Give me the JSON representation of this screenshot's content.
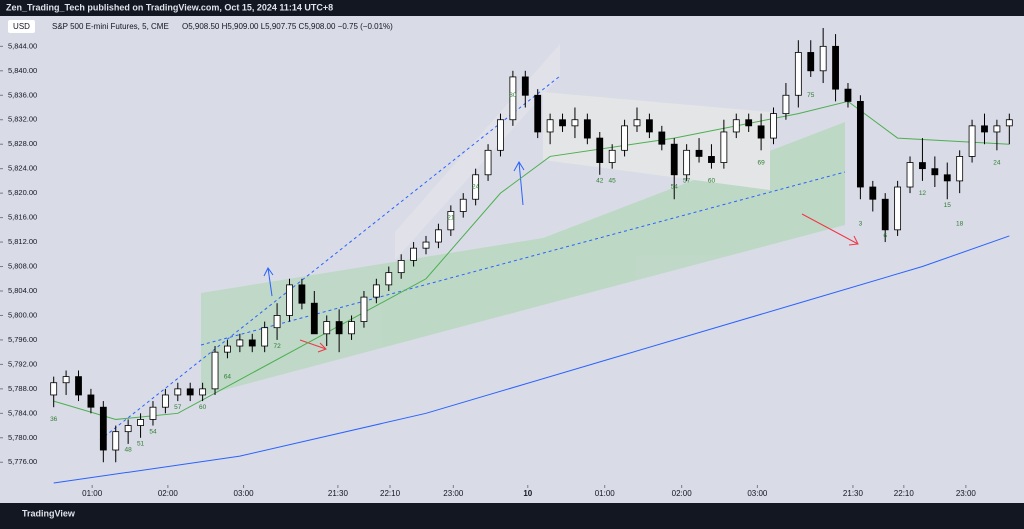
{
  "header": {
    "publisher": "Zen_Trading_Tech published on TradingView.com, Oct 15, 2024 11:14 UTC+8",
    "currency": "USD",
    "footer": "TradingView"
  },
  "chart_data": {
    "type": "candlestick",
    "title": "S&P 500 E-mini Futures, 5, CME",
    "subtitle": "O5,908.50 H5,909.00 L5,907.75 C5,908.00 −0.75 (−0.01%)",
    "up_color": "#ffffff",
    "down_color": "#000000",
    "ohlc": [
      [
        5787,
        5790,
        5785,
        5789
      ],
      [
        5789,
        5791,
        5787,
        5790
      ],
      [
        5790,
        5791,
        5786,
        5787
      ],
      [
        5787,
        5788,
        5784,
        5785
      ],
      [
        5785,
        5786,
        5776,
        5778
      ],
      [
        5778,
        5782,
        5776,
        5781
      ],
      [
        5781,
        5783,
        5779,
        5782
      ],
      [
        5782,
        5784,
        5780,
        5783
      ],
      [
        5783,
        5786,
        5782,
        5785
      ],
      [
        5785,
        5788,
        5784,
        5787
      ],
      [
        5787,
        5789,
        5786,
        5788
      ],
      [
        5788,
        5789,
        5786,
        5787
      ],
      [
        5787,
        5789,
        5786,
        5788
      ],
      [
        5788,
        5795,
        5787,
        5794
      ],
      [
        5794,
        5796,
        5793,
        5795
      ],
      [
        5795,
        5797,
        5794,
        5796
      ],
      [
        5796,
        5797,
        5794,
        5795
      ],
      [
        5795,
        5799,
        5794,
        5798
      ],
      [
        5798,
        5802,
        5796,
        5800
      ],
      [
        5800,
        5806,
        5799,
        5805
      ],
      [
        5805,
        5806,
        5801,
        5802
      ],
      [
        5802,
        5804,
        5797,
        5797
      ],
      [
        5797,
        5800,
        5795,
        5799
      ],
      [
        5799,
        5801,
        5794,
        5797
      ],
      [
        5797,
        5800,
        5796,
        5799
      ],
      [
        5799,
        5804,
        5798,
        5803
      ],
      [
        5803,
        5806,
        5802,
        5805
      ],
      [
        5805,
        5808,
        5804,
        5807
      ],
      [
        5807,
        5810,
        5806,
        5809
      ],
      [
        5809,
        5812,
        5808,
        5811
      ],
      [
        5811,
        5813,
        5810,
        5812
      ],
      [
        5812,
        5815,
        5811,
        5814
      ],
      [
        5814,
        5818,
        5813,
        5817
      ],
      [
        5817,
        5820,
        5816,
        5819
      ],
      [
        5819,
        5824,
        5818,
        5823
      ],
      [
        5823,
        5828,
        5822,
        5827
      ],
      [
        5827,
        5833,
        5826,
        5832
      ],
      [
        5832,
        5840,
        5831,
        5839
      ],
      [
        5839,
        5840,
        5834,
        5836
      ],
      [
        5836,
        5837,
        5829,
        5830
      ],
      [
        5830,
        5833,
        5828,
        5832
      ],
      [
        5832,
        5833,
        5830,
        5831
      ],
      [
        5831,
        5834,
        5829,
        5832
      ],
      [
        5832,
        5833,
        5828,
        5829
      ],
      [
        5829,
        5830,
        5823,
        5825
      ],
      [
        5825,
        5828,
        5824,
        5827
      ],
      [
        5827,
        5832,
        5826,
        5831
      ],
      [
        5831,
        5834,
        5830,
        5832
      ],
      [
        5832,
        5833,
        5829,
        5830
      ],
      [
        5830,
        5831,
        5827,
        5828
      ],
      [
        5828,
        5829,
        5819,
        5823
      ],
      [
        5823,
        5828,
        5822,
        5827
      ],
      [
        5827,
        5829,
        5825,
        5826
      ],
      [
        5826,
        5828,
        5824,
        5825
      ],
      [
        5825,
        5832,
        5824,
        5830
      ],
      [
        5830,
        5833,
        5829,
        5832
      ],
      [
        5832,
        5833,
        5830,
        5831
      ],
      [
        5831,
        5833,
        5827,
        5829
      ],
      [
        5829,
        5834,
        5828,
        5833
      ],
      [
        5833,
        5838,
        5832,
        5836
      ],
      [
        5836,
        5845,
        5834,
        5843
      ],
      [
        5843,
        5845,
        5839,
        5840
      ],
      [
        5840,
        5847,
        5838,
        5844
      ],
      [
        5844,
        5846,
        5835,
        5837
      ],
      [
        5837,
        5838,
        5834,
        5835
      ],
      [
        5835,
        5836,
        5819,
        5821
      ],
      [
        5821,
        5822,
        5817,
        5819
      ],
      [
        5819,
        5820,
        5812,
        5814
      ],
      [
        5814,
        5822,
        5813,
        5821
      ],
      [
        5821,
        5826,
        5820,
        5825
      ],
      [
        5825,
        5829,
        5822,
        5824
      ],
      [
        5824,
        5826,
        5821,
        5823
      ],
      [
        5823,
        5825,
        5819,
        5822
      ],
      [
        5822,
        5827,
        5820,
        5826
      ],
      [
        5826,
        5832,
        5825,
        5831
      ],
      [
        5831,
        5833,
        5828,
        5830
      ],
      [
        5830,
        5832,
        5827,
        5831
      ],
      [
        5831,
        5833,
        5828,
        5832
      ]
    ],
    "lines": [
      {
        "color": "#4caf50",
        "x": [
          0,
          5,
          10,
          20,
          30,
          36,
          40,
          50,
          60,
          64,
          68,
          77
        ],
        "values": [
          5786,
          5783,
          5784,
          5795,
          5806,
          5820,
          5826,
          5829,
          5833,
          5835,
          5829,
          5828
        ]
      },
      {
        "color": "#2962ff",
        "x": [
          0,
          15,
          30,
          45,
          60,
          70,
          77
        ],
        "values": [
          5772.6,
          5777,
          5784,
          5793,
          5802,
          5808,
          5813
        ]
      }
    ],
    "annotations": [
      {
        "text": "36",
        "x": 0,
        "y": 5783
      },
      {
        "text": "48",
        "x": 6,
        "y": 5778
      },
      {
        "text": "51",
        "x": 7,
        "y": 5779
      },
      {
        "text": "54",
        "x": 8,
        "y": 5781
      },
      {
        "text": "57",
        "x": 10,
        "y": 5785
      },
      {
        "text": "60",
        "x": 12,
        "y": 5785
      },
      {
        "text": "64",
        "x": 14,
        "y": 5790
      },
      {
        "text": "72",
        "x": 18,
        "y": 5795
      },
      {
        "text": "24",
        "x": 34,
        "y": 5821
      },
      {
        "text": "21",
        "x": 32,
        "y": 5816
      },
      {
        "text": "30",
        "x": 37,
        "y": 5836
      },
      {
        "text": "42",
        "x": 44,
        "y": 5822
      },
      {
        "text": "45",
        "x": 45,
        "y": 5822
      },
      {
        "text": "54",
        "x": 50,
        "y": 5821
      },
      {
        "text": "57",
        "x": 51,
        "y": 5822
      },
      {
        "text": "60",
        "x": 53,
        "y": 5822
      },
      {
        "text": "69",
        "x": 57,
        "y": 5825
      },
      {
        "text": "75",
        "x": 61,
        "y": 5836
      },
      {
        "text": "3",
        "x": 65,
        "y": 5815
      },
      {
        "text": "6",
        "x": 67,
        "y": 5813
      },
      {
        "text": "12",
        "x": 70,
        "y": 5820
      },
      {
        "text": "15",
        "x": 72,
        "y": 5818
      },
      {
        "text": "18",
        "x": 73,
        "y": 5815
      },
      {
        "text": "24",
        "x": 76,
        "y": 5825
      }
    ],
    "xlim": [
      -0.7,
      77.7
    ],
    "ylim": [
      5772.28,
      5848.96
    ],
    "xticks": [
      {
        "value": 3.1,
        "label": "01:00"
      },
      {
        "value": 9.2,
        "label": "02:00"
      },
      {
        "value": 15.3,
        "label": "03:00"
      },
      {
        "value": 22.9,
        "label": "21:30"
      },
      {
        "value": 27.1,
        "label": "22:10"
      },
      {
        "value": 32.2,
        "label": "23:00"
      },
      {
        "value": 38.2,
        "label": "10"
      },
      {
        "value": 44.4,
        "label": "01:00"
      },
      {
        "value": 50.6,
        "label": "02:00"
      },
      {
        "value": 56.7,
        "label": "03:00"
      },
      {
        "value": 64.4,
        "label": "21:30"
      },
      {
        "value": 68.5,
        "label": "22:10"
      },
      {
        "value": 73.5,
        "label": "23:00"
      }
    ],
    "yticks": [
      {
        "value": 5776,
        "label": "5,776.00"
      },
      {
        "value": 5780,
        "label": "5,780.00"
      },
      {
        "value": 5784,
        "label": "5,784.00"
      },
      {
        "value": 5788,
        "label": "5,788.00"
      },
      {
        "value": 5792,
        "label": "5,792.00"
      },
      {
        "value": 5796,
        "label": "5,796.00"
      },
      {
        "value": 5800,
        "label": "5,800.00"
      },
      {
        "value": 5804,
        "label": "5,804.00"
      },
      {
        "value": 5808,
        "label": "5,808.00"
      },
      {
        "value": 5812,
        "label": "5,812.00"
      },
      {
        "value": 5816,
        "label": "5,816.00"
      },
      {
        "value": 5820,
        "label": "5,820.00"
      },
      {
        "value": 5824,
        "label": "5,824.00"
      },
      {
        "value": 5828,
        "label": "5,828.00"
      },
      {
        "value": 5832,
        "label": "5,832.00"
      },
      {
        "value": 5836,
        "label": "5,836.00"
      },
      {
        "value": 5840,
        "label": "5,840.00"
      },
      {
        "value": 5844,
        "label": "5,844.00"
      }
    ]
  }
}
